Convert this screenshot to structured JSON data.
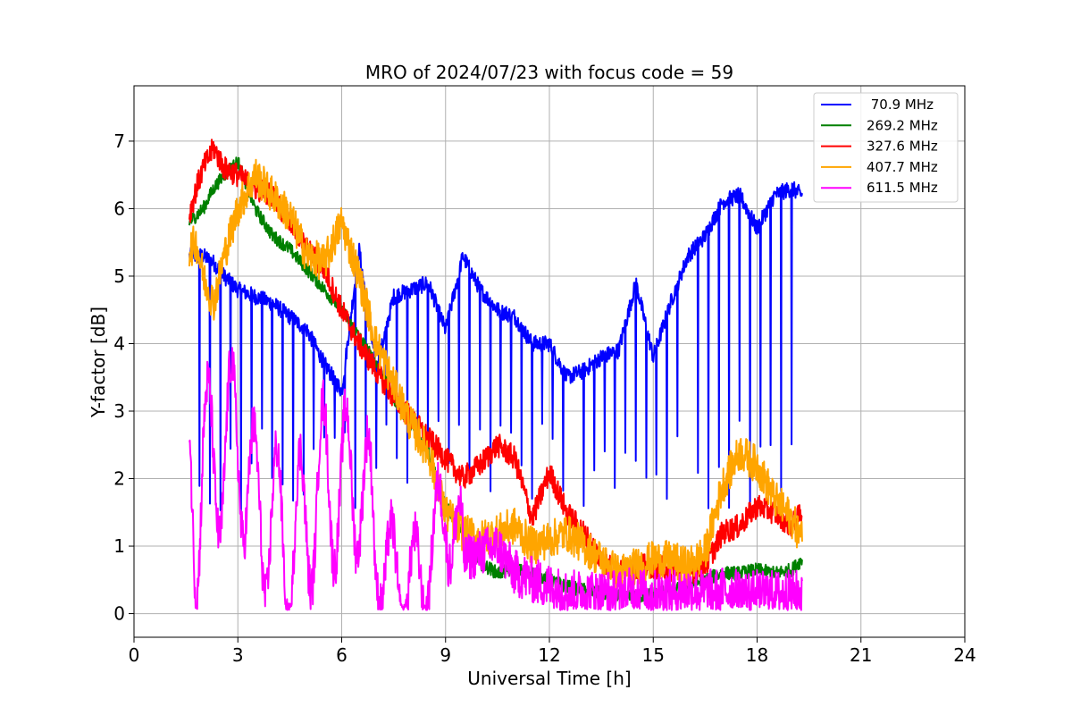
{
  "chart_data": {
    "type": "line",
    "title": "MRO of 2024/07/23 with focus code = 59",
    "xlabel": "Universal Time [h]",
    "ylabel": "Y-factor [dB]",
    "xlim": [
      0,
      24
    ],
    "ylim": [
      -0.35,
      7.82
    ],
    "xticks": [
      0,
      3,
      6,
      9,
      12,
      15,
      18,
      21,
      24
    ],
    "xtick_labels": [
      "0",
      "3",
      "6",
      "9",
      "12",
      "15",
      "18",
      "21",
      "24"
    ],
    "yticks": [
      0,
      1,
      2,
      3,
      4,
      5,
      6,
      7
    ],
    "ytick_labels": [
      "0",
      "1",
      "2",
      "3",
      "4",
      "5",
      "6",
      "7"
    ],
    "grid": true,
    "legend_position": "top-right",
    "series": [
      {
        "name": " 70.9 MHz",
        "color": "#0000ff",
        "x": [
          1.6,
          1.8,
          2.0,
          2.3,
          2.6,
          3.0,
          3.5,
          4.0,
          4.5,
          5.0,
          5.5,
          6.0,
          6.5,
          7.0,
          7.5,
          8.0,
          8.5,
          9.0,
          9.5,
          10.0,
          10.5,
          11.0,
          11.5,
          12.0,
          12.5,
          13.0,
          13.5,
          14.0,
          14.5,
          15.0,
          15.5,
          16.0,
          16.5,
          17.0,
          17.5,
          18.0,
          18.5,
          19.0,
          19.3
        ],
        "y": [
          5.3,
          5.3,
          5.3,
          5.2,
          5.0,
          4.8,
          4.7,
          4.6,
          4.4,
          4.2,
          3.7,
          3.3,
          5.4,
          3.6,
          4.7,
          4.8,
          4.9,
          4.2,
          5.3,
          4.8,
          4.5,
          4.4,
          4.0,
          4.0,
          3.5,
          3.6,
          3.8,
          3.9,
          4.9,
          3.8,
          4.6,
          5.3,
          5.6,
          6.1,
          6.2,
          5.7,
          6.2,
          6.3,
          6.2
        ],
        "dips_to": 1.5
      },
      {
        "name": "269.2 MHz",
        "color": "#008000",
        "x": [
          1.6,
          1.8,
          2.0,
          2.3,
          2.6,
          3.0,
          3.5,
          4.0,
          4.5,
          5.0,
          5.5,
          6.0,
          6.5,
          7.0,
          7.5,
          8.0,
          8.5,
          9.0,
          9.5,
          10.0,
          10.5,
          11.0,
          11.5,
          12.0,
          12.5,
          13.0,
          13.5,
          14.0,
          14.5,
          15.0,
          15.5,
          16.0,
          16.5,
          17.0,
          17.5,
          18.0,
          18.5,
          19.0,
          19.3
        ],
        "y": [
          5.8,
          5.9,
          6.0,
          6.3,
          6.5,
          6.7,
          6.0,
          5.6,
          5.4,
          5.1,
          4.8,
          4.5,
          4.1,
          3.7,
          3.2,
          2.8,
          2.4,
          1.6,
          1.2,
          0.75,
          0.6,
          0.65,
          0.6,
          0.5,
          0.4,
          0.35,
          0.3,
          0.25,
          0.25,
          0.3,
          0.35,
          0.4,
          0.5,
          0.6,
          0.6,
          0.65,
          0.6,
          0.65,
          0.8
        ]
      },
      {
        "name": "327.6 MHz",
        "color": "#ff0000",
        "x": [
          1.6,
          1.8,
          2.0,
          2.3,
          2.6,
          3.0,
          3.5,
          4.0,
          4.5,
          5.0,
          5.5,
          6.0,
          6.5,
          7.0,
          7.5,
          8.0,
          8.5,
          9.0,
          9.5,
          10.0,
          10.5,
          11.0,
          11.5,
          12.0,
          12.5,
          13.0,
          13.5,
          14.0,
          14.5,
          15.0,
          15.5,
          16.0,
          16.5,
          17.0,
          17.5,
          18.0,
          18.5,
          19.0,
          19.3
        ],
        "y": [
          5.9,
          6.3,
          6.6,
          6.9,
          6.6,
          6.5,
          6.3,
          6.2,
          5.8,
          5.4,
          5.1,
          4.5,
          4.0,
          3.6,
          3.2,
          2.9,
          2.6,
          2.3,
          2.0,
          2.2,
          2.5,
          2.3,
          1.4,
          2.1,
          1.5,
          1.2,
          0.8,
          0.6,
          0.7,
          0.7,
          0.65,
          0.6,
          0.7,
          1.2,
          1.3,
          1.6,
          1.5,
          1.3,
          1.5
        ]
      },
      {
        "name": "407.7 MHz",
        "color": "#ffa500",
        "x": [
          1.6,
          1.8,
          2.0,
          2.3,
          2.6,
          3.0,
          3.5,
          4.0,
          4.5,
          5.0,
          5.5,
          6.0,
          6.5,
          7.0,
          7.5,
          8.0,
          8.5,
          9.0,
          9.5,
          10.0,
          10.5,
          11.0,
          11.5,
          12.0,
          12.5,
          13.0,
          13.5,
          14.0,
          14.5,
          15.0,
          15.5,
          16.0,
          16.5,
          17.0,
          17.5,
          18.0,
          18.5,
          19.0,
          19.3
        ],
        "y": [
          5.4,
          5.5,
          5.0,
          4.6,
          5.3,
          6.0,
          6.5,
          6.2,
          5.9,
          5.3,
          5.2,
          5.8,
          5.0,
          4.0,
          3.4,
          2.8,
          2.4,
          1.5,
          1.2,
          1.1,
          1.2,
          1.3,
          1.0,
          1.1,
          1.2,
          1.0,
          0.8,
          0.6,
          0.7,
          0.8,
          0.8,
          0.7,
          0.9,
          1.9,
          2.4,
          2.2,
          1.7,
          1.4,
          1.1
        ]
      },
      {
        "name": "611.5 MHz",
        "color": "#ff00ff",
        "x": [
          1.6,
          1.8,
          2.0,
          2.3,
          2.6,
          3.0,
          3.5,
          4.0,
          4.5,
          5.0,
          5.5,
          6.0,
          6.5,
          7.0,
          7.5,
          8.0,
          8.5,
          9.0,
          9.5,
          10.0,
          10.5,
          11.0,
          11.5,
          12.0,
          12.5,
          13.0,
          13.5,
          14.0,
          14.5,
          15.0,
          15.5,
          16.0,
          16.5,
          17.0,
          17.5,
          18.0,
          18.5,
          19.0,
          19.3
        ],
        "y": [
          2.3,
          1.3,
          2.4,
          2.1,
          2.5,
          2.6,
          1.5,
          1.4,
          0.9,
          1.4,
          2.0,
          1.8,
          2.1,
          0.9,
          0.6,
          0.4,
          0.7,
          1.6,
          0.8,
          0.9,
          1.0,
          0.6,
          0.5,
          0.4,
          0.3,
          0.3,
          0.3,
          0.3,
          0.35,
          0.3,
          0.3,
          0.35,
          0.3,
          0.35,
          0.3,
          0.3,
          0.3,
          0.3,
          0.3
        ]
      }
    ]
  }
}
